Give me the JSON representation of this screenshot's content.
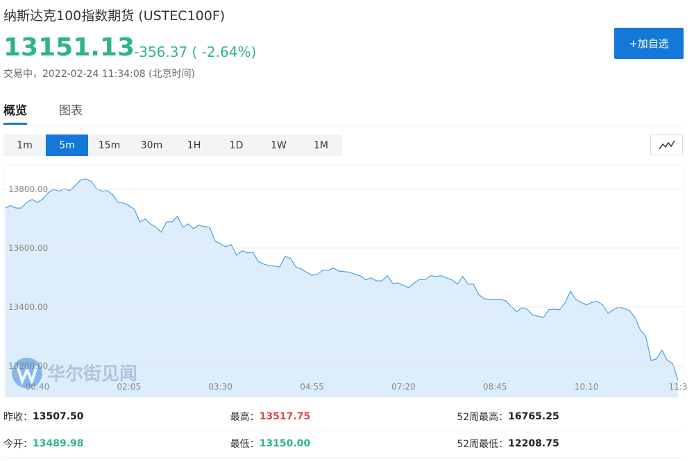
{
  "header": {
    "title": "纳斯达克100指数期货 (USTEC100F)",
    "price": "13151.13",
    "change": "-356.37 ( -2.64%)",
    "status": "交易中，2022-02-24 11:34:08 (北京时间)",
    "add_button": "+加自选"
  },
  "tabs": [
    "概览",
    "图表"
  ],
  "intervals": [
    "1m",
    "5m",
    "15m",
    "30m",
    "1H",
    "1D",
    "1W",
    "1M"
  ],
  "watermark": "华尔街见闻",
  "chart_data": {
    "type": "area",
    "color": "#4a9ee8",
    "fill": "#ddedfb",
    "grid": true,
    "categories": [
      null,
      null,
      null,
      null,
      null,
      null,
      "00:40",
      null,
      null,
      null,
      null,
      null,
      null,
      null,
      null,
      null,
      null,
      null,
      null,
      null,
      null,
      null,
      null,
      "02:05",
      null,
      null,
      null,
      null,
      null,
      null,
      null,
      null,
      null,
      null,
      null,
      null,
      null,
      null,
      null,
      null,
      "03:30",
      null,
      null,
      null,
      null,
      null,
      null,
      null,
      null,
      null,
      null,
      null,
      null,
      null,
      null,
      null,
      null,
      "04:55",
      null,
      null,
      null,
      null,
      null,
      null,
      null,
      null,
      null,
      null,
      null,
      null,
      null,
      null,
      null,
      null,
      "07:20",
      null,
      null,
      null,
      null,
      null,
      null,
      null,
      null,
      null,
      null,
      null,
      null,
      null,
      null,
      null,
      null,
      "08:45",
      null,
      null,
      null,
      null,
      null,
      null,
      null,
      null,
      null,
      null,
      null,
      null,
      null,
      null,
      null,
      null,
      "10:10",
      null,
      null,
      null,
      null,
      null,
      null,
      null,
      null,
      null,
      null,
      null,
      null,
      null,
      null,
      null,
      null,
      "11:3"
    ],
    "values": [
      13736,
      13744,
      13736,
      13736,
      13755,
      13765,
      13755,
      13767,
      13788,
      13800,
      13793,
      13802,
      13795,
      13812,
      13831,
      13835,
      13826,
      13802,
      13793,
      13795,
      13781,
      13755,
      13753,
      13744,
      13732,
      13689,
      13699,
      13682,
      13671,
      13654,
      13689,
      13689,
      13708,
      13671,
      13682,
      13666,
      13678,
      13673,
      13671,
      13624,
      13614,
      13605,
      13612,
      13576,
      13591,
      13584,
      13586,
      13555,
      13546,
      13541,
      13539,
      13536,
      13572,
      13565,
      13536,
      13529,
      13518,
      13508,
      13511,
      13525,
      13525,
      13532,
      13522,
      13520,
      13518,
      13511,
      13506,
      13492,
      13499,
      13489,
      13489,
      13506,
      13480,
      13482,
      13473,
      13466,
      13482,
      13494,
      13492,
      13506,
      13504,
      13506,
      13499,
      13492,
      13478,
      13504,
      13478,
      13478,
      13442,
      13428,
      13426,
      13426,
      13426,
      13421,
      13402,
      13384,
      13398,
      13393,
      13372,
      13369,
      13365,
      13391,
      13393,
      13391,
      13414,
      13454,
      13426,
      13416,
      13407,
      13416,
      13419,
      13407,
      13379,
      13391,
      13400,
      13395,
      13388,
      13365,
      13322,
      13301,
      13219,
      13224,
      13254,
      13219,
      13209,
      13151
    ],
    "ylim": [
      13094,
      13882
    ],
    "yticks": [
      {
        "value": 13200,
        "label": "13200.00"
      },
      {
        "value": 13400,
        "label": "13400.00"
      },
      {
        "value": 13600,
        "label": "13600.00"
      },
      {
        "value": 13800,
        "label": "13800.00"
      }
    ]
  },
  "stats": [
    [
      {
        "label": "昨收：",
        "value": "13507.50"
      },
      {
        "label": "最高：",
        "value": "13517.75"
      },
      {
        "label": "52周最高：",
        "value": "16765.25"
      }
    ],
    [
      {
        "label": "今开：",
        "value": "13489.98"
      },
      {
        "label": "最低：",
        "value": "13150.00"
      },
      {
        "label": "52周最低：",
        "value": "12208.75"
      }
    ]
  ]
}
